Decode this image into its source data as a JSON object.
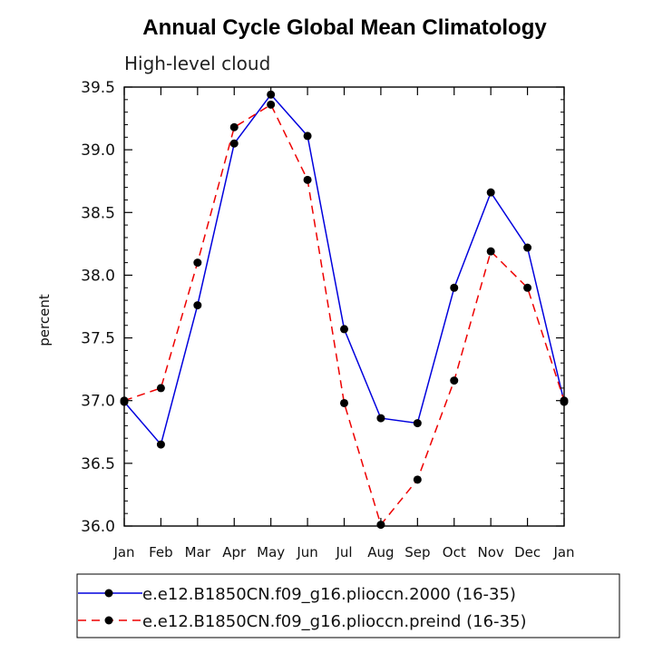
{
  "chart_data": {
    "type": "line",
    "title": "Annual Cycle Global Mean Climatology",
    "subtitle": "High-level cloud",
    "xlabel": "",
    "ylabel": "percent",
    "categories": [
      "Jan",
      "Feb",
      "Mar",
      "Apr",
      "May",
      "Jun",
      "Jul",
      "Aug",
      "Sep",
      "Oct",
      "Nov",
      "Dec",
      "Jan"
    ],
    "ylim": [
      36.0,
      39.5
    ],
    "yticks": [
      "36.0",
      "36.5",
      "37.0",
      "37.5",
      "38.0",
      "38.5",
      "39.0",
      "39.5"
    ],
    "legend_position": "bottom",
    "series": [
      {
        "name": "e.e12.B1850CN.f09_g16.plioccn.2000 (16-35)",
        "color": "#0000dd",
        "style": "solid",
        "values": [
          36.99,
          36.65,
          37.76,
          39.05,
          39.44,
          39.11,
          37.57,
          36.86,
          36.82,
          37.9,
          38.66,
          38.22,
          36.99
        ]
      },
      {
        "name": "e.e12.B1850CN.f09_g16.plioccn.preind (16-35)",
        "color": "#ee0000",
        "style": "dashed",
        "values": [
          37.0,
          37.1,
          38.1,
          39.18,
          39.36,
          38.76,
          36.98,
          36.01,
          36.37,
          37.16,
          38.19,
          37.9,
          37.0
        ]
      }
    ]
  }
}
